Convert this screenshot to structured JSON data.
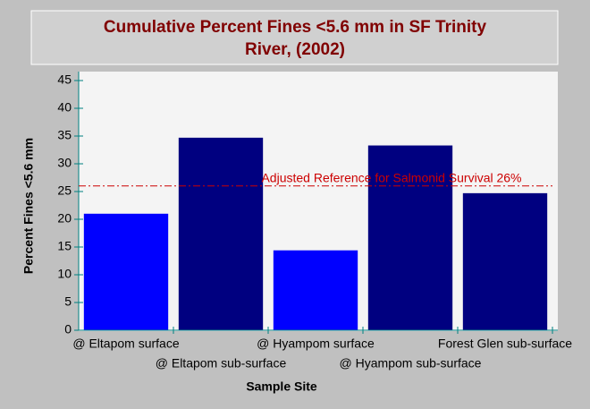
{
  "chart_data": {
    "type": "bar",
    "title": [
      "Cumulative Percent Fines <5.6 mm in SF Trinity",
      "River,  (2002)"
    ],
    "x_label": "Sample Site",
    "y_label": "Percent Fines <5.6 mm",
    "categories": [
      "@ Eltapom surface",
      "@ Eltapom sub-surface",
      "@ Hyampom surface",
      "@ Hyampom sub-surface",
      "Forest Glen sub-surface"
    ],
    "values": [
      21,
      34.7,
      14.4,
      33.3,
      24.7
    ],
    "colors": [
      "#0000ff",
      "#000080",
      "#0000ff",
      "#000080",
      "#000080"
    ],
    "ylim": [
      0,
      45
    ],
    "yticks": [
      0,
      5,
      10,
      15,
      20,
      25,
      30,
      35,
      40,
      45
    ],
    "reference_line": {
      "value": 26,
      "label": "Adjusted Reference for Salmonid Survival 26%",
      "color": "#cc0000"
    }
  }
}
